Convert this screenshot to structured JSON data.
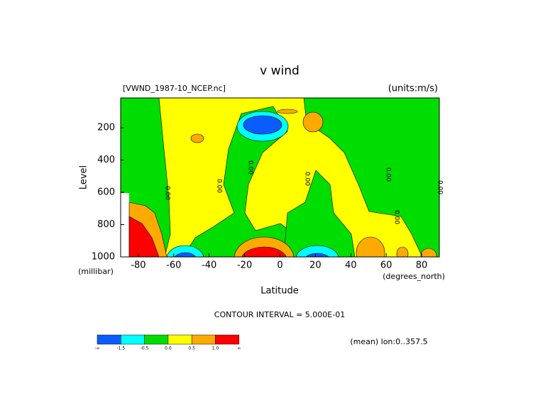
{
  "chart_data": {
    "type": "contour",
    "title": "v wind",
    "dataset": "[VWND_1987-10_NCEP.nc]",
    "units": "(units:m/s)",
    "xlabel": "Latitude",
    "xunits": "(degrees_north)",
    "ylabel": "Level",
    "yunits": "(millibar)",
    "xlim": [
      -90,
      90
    ],
    "xticks": [
      -80,
      -60,
      -40,
      -20,
      0,
      20,
      40,
      60,
      80
    ],
    "ylim": [
      1000,
      15
    ],
    "yticks": [
      200,
      400,
      600,
      800,
      1000
    ],
    "contour_interval": "CONTOUR INTERVAL = 5.000E-01",
    "footer": "(mean) lon:0..357.5",
    "contour_labels": [
      "0.00",
      "0.00",
      "0.00",
      "0.00",
      "0.00",
      "0.00",
      "0.00"
    ],
    "colorbar": {
      "colors": [
        "#0a5cff",
        "#00ffff",
        "#00dd00",
        "#ffff00",
        "#ffaa00",
        "#ff0000"
      ],
      "labels": [
        "-∞",
        "-1.5",
        "-0.5",
        "0.0",
        "0.5",
        "1.0",
        "∞"
      ]
    }
  }
}
